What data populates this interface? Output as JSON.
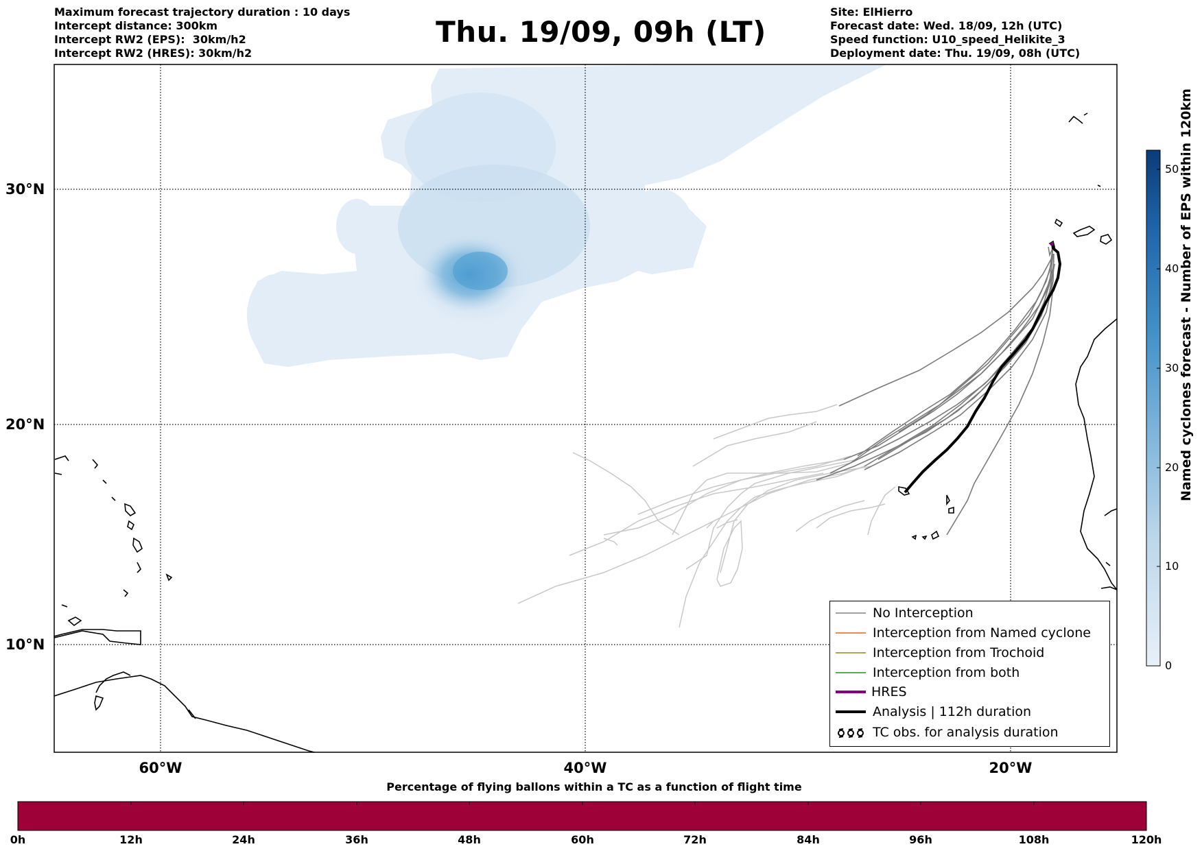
{
  "header_left": [
    "Maximum forecast trajectory duration : 10 days",
    "Intercept distance: 300km",
    "Intercept RW2 (EPS):  30km/h2",
    "Intercept RW2 (HRES): 30km/h2"
  ],
  "title": "Thu. 19/09, 09h (LT)",
  "header_right": [
    "Site: ElHierro",
    "Forecast date: Wed. 18/09, 12h (UTC)",
    "Speed function: U10_speed_Helikite_3",
    "Deployment date: Thu. 19/09, 08h (UTC)"
  ],
  "map": {
    "lat_labels": [
      "30°N",
      "20°N",
      "10°N"
    ],
    "lon_labels": [
      "60°W",
      "40°W",
      "20°W"
    ]
  },
  "legend": [
    {
      "label": "No Interception",
      "color": "#808080",
      "style": "thin"
    },
    {
      "label": "Interception from Named cyclone",
      "color": "#e8601c",
      "style": "thin"
    },
    {
      "label": "Interception from Trochoid",
      "color": "#8a8a20",
      "style": "thin"
    },
    {
      "label": "Interception from both",
      "color": "#2a8a2a",
      "style": "thin"
    },
    {
      "label": "HRES",
      "color": "#800080",
      "style": "thick"
    },
    {
      "label": "Analysis | 112h duration",
      "color": "#000000",
      "style": "thick"
    },
    {
      "label": "TC obs. for analysis duration",
      "icon": "cyclone-symbols-icon"
    }
  ],
  "colorbar": {
    "title": "Named cyclones forecast - Number of EPS within 120km",
    "ticks": [
      "0",
      "10",
      "20",
      "30",
      "40",
      "50"
    ],
    "min_color": "#e8f0f8",
    "max_color": "#0b3b78"
  },
  "bottom_bar": {
    "title": "Percentage of flying ballons within a TC as a function of flight time",
    "color": "#9e0038",
    "ticks": [
      "0h",
      "12h",
      "24h",
      "36h",
      "48h",
      "60h",
      "72h",
      "84h",
      "96h",
      "108h",
      "120h"
    ]
  }
}
